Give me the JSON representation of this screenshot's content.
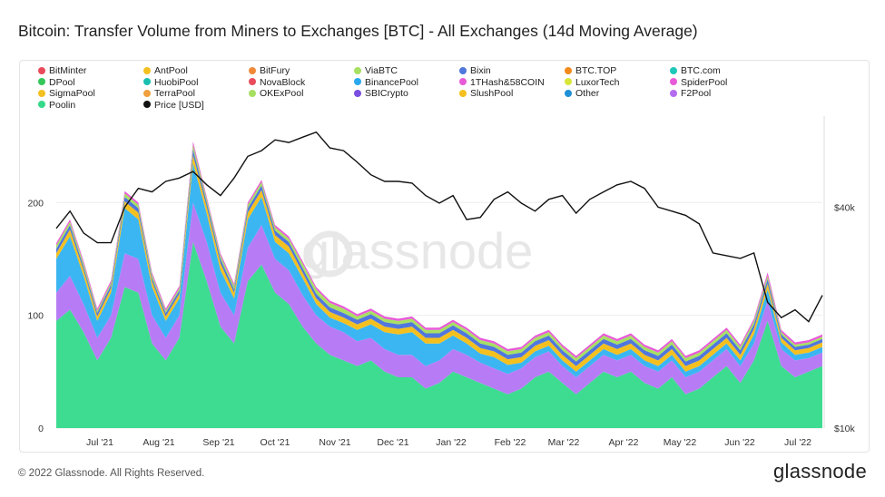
{
  "title": "Bitcoin: Transfer Volume from Miners to Exchanges [BTC] - All Exchanges (14d Moving Average)",
  "watermark": "glassnode",
  "footer": {
    "copyright": "© 2022 Glassnode. All Rights Reserved.",
    "brand": "glassnode"
  },
  "chart_data": {
    "type": "area",
    "stacked": true,
    "title": "Bitcoin: Transfer Volume from Miners to Exchanges [BTC] - All Exchanges (14d Moving Average)",
    "xlabel": "",
    "ylabel": "",
    "x_tick_labels": [
      "Jul '21",
      "Aug '21",
      "Sep '21",
      "Oct '21",
      "Nov '21",
      "Dec '21",
      "Jan '22",
      "Feb '22",
      "Mar '22",
      "Apr '22",
      "May '22",
      "Jun '22",
      "Jul '22"
    ],
    "y_left": {
      "ticks": [
        0,
        100,
        200
      ],
      "range": [
        0,
        275
      ]
    },
    "y_right": {
      "ticks": [
        "$10k",
        "$40k"
      ],
      "scale": "log",
      "range": [
        10000,
        70000
      ]
    },
    "legend_placement": "top",
    "legend": [
      {
        "name": "BitMinter",
        "color": "#ea4b5c"
      },
      {
        "name": "AntPool",
        "color": "#f4c020"
      },
      {
        "name": "BitFury",
        "color": "#f08a3a"
      },
      {
        "name": "ViaBTC",
        "color": "#a7e062"
      },
      {
        "name": "Bixin",
        "color": "#4f77dd"
      },
      {
        "name": "BTC.TOP",
        "color": "#f28a1c"
      },
      {
        "name": "BTC.com",
        "color": "#1fc7b8"
      },
      {
        "name": "DPool",
        "color": "#34c759"
      },
      {
        "name": "HuobiPool",
        "color": "#19bfae"
      },
      {
        "name": "NovaBlock",
        "color": "#ea4b5c"
      },
      {
        "name": "BinancePool",
        "color": "#2aa8f0"
      },
      {
        "name": "1THash&58COIN",
        "color": "#e85ad8"
      },
      {
        "name": "LuxorTech",
        "color": "#d8e63a"
      },
      {
        "name": "SpiderPool",
        "color": "#e85ad8"
      },
      {
        "name": "SigmaPool",
        "color": "#f4c020"
      },
      {
        "name": "TerraPool",
        "color": "#f0a03c"
      },
      {
        "name": "OKExPool",
        "color": "#a7e062"
      },
      {
        "name": "SBICrypto",
        "color": "#7a4fe0"
      },
      {
        "name": "SlushPool",
        "color": "#f4c020"
      },
      {
        "name": "Other",
        "color": "#1e90d8"
      },
      {
        "name": "F2Pool",
        "color": "#b36bf0"
      },
      {
        "name": "Poolin",
        "color": "#34d98a"
      },
      {
        "name": "Price [USD]",
        "color": "#111111"
      }
    ],
    "x_index_note": "x index 0 = mid-June 2021, step approx. 1 week, index 56 = late July 2022",
    "series": [
      {
        "name": "Poolin",
        "color": "#3ddc91",
        "values": [
          95,
          105,
          85,
          60,
          80,
          125,
          120,
          75,
          60,
          80,
          165,
          130,
          90,
          75,
          130,
          145,
          120,
          110,
          90,
          75,
          65,
          60,
          55,
          60,
          50,
          45,
          45,
          35,
          40,
          50,
          45,
          40,
          35,
          30,
          35,
          45,
          50,
          40,
          30,
          40,
          50,
          45,
          50,
          40,
          35,
          45,
          30,
          35,
          45,
          55,
          40,
          60,
          95,
          55,
          45,
          50,
          55
        ]
      },
      {
        "name": "F2Pool",
        "color": "#b77cf5",
        "values": [
          25,
          30,
          25,
          20,
          20,
          30,
          30,
          25,
          20,
          20,
          35,
          35,
          30,
          25,
          30,
          35,
          30,
          30,
          28,
          25,
          25,
          25,
          22,
          20,
          20,
          20,
          20,
          20,
          20,
          20,
          20,
          18,
          18,
          18,
          18,
          18,
          18,
          15,
          15,
          15,
          15,
          15,
          15,
          15,
          15,
          15,
          15,
          15,
          15,
          15,
          15,
          15,
          18,
          15,
          15,
          12,
          12
        ]
      },
      {
        "name": "Other",
        "color": "#3bb6f2",
        "values": [
          30,
          35,
          25,
          15,
          20,
          40,
          35,
          25,
          15,
          15,
          35,
          25,
          20,
          15,
          25,
          25,
          15,
          15,
          15,
          10,
          8,
          8,
          10,
          12,
          15,
          18,
          20,
          20,
          15,
          12,
          10,
          8,
          10,
          8,
          5,
          5,
          5,
          5,
          5,
          5,
          5,
          5,
          5,
          5,
          5,
          5,
          5,
          5,
          5,
          5,
          5,
          8,
          10,
          6,
          5,
          5,
          5
        ]
      },
      {
        "name": "AntPool",
        "color": "#f4c020",
        "values": [
          5,
          6,
          5,
          4,
          4,
          6,
          6,
          5,
          4,
          4,
          7,
          6,
          6,
          5,
          6,
          6,
          6,
          6,
          5,
          5,
          5,
          5,
          5,
          5,
          5,
          5,
          5,
          5,
          5,
          5,
          5,
          5,
          5,
          5,
          5,
          5,
          5,
          5,
          5,
          5,
          5,
          5,
          5,
          5,
          5,
          5,
          5,
          5,
          5,
          5,
          5,
          5,
          5,
          4,
          4,
          4,
          4
        ]
      },
      {
        "name": "BinancePool",
        "color": "#4f77dd",
        "values": [
          4,
          4,
          3,
          3,
          3,
          4,
          4,
          3,
          3,
          3,
          5,
          4,
          4,
          3,
          4,
          4,
          4,
          4,
          4,
          4,
          4,
          4,
          4,
          4,
          4,
          4,
          4,
          4,
          4,
          4,
          4,
          4,
          4,
          4,
          4,
          4,
          4,
          4,
          4,
          4,
          4,
          4,
          4,
          4,
          4,
          4,
          4,
          4,
          4,
          4,
          4,
          4,
          4,
          3,
          3,
          3,
          3
        ]
      },
      {
        "name": "ViaBTC",
        "color": "#a7e062",
        "values": [
          3,
          3,
          3,
          2,
          2,
          3,
          3,
          3,
          2,
          2,
          4,
          3,
          3,
          3,
          3,
          3,
          3,
          3,
          4,
          4,
          4,
          4,
          3,
          3,
          3,
          3,
          3,
          3,
          3,
          3,
          3,
          3,
          3,
          3,
          3,
          3,
          3,
          3,
          3,
          3,
          3,
          3,
          3,
          3,
          3,
          3,
          3,
          3,
          3,
          3,
          3,
          3,
          3,
          2,
          2,
          2,
          2
        ]
      },
      {
        "name": "SpiderPool",
        "color": "#e85ad8",
        "values": [
          2,
          2,
          2,
          2,
          2,
          2,
          2,
          2,
          2,
          2,
          3,
          2,
          2,
          2,
          2,
          2,
          2,
          2,
          2,
          2,
          2,
          2,
          2,
          2,
          2,
          2,
          2,
          2,
          2,
          2,
          2,
          2,
          2,
          2,
          2,
          2,
          2,
          2,
          2,
          2,
          2,
          2,
          2,
          2,
          2,
          2,
          2,
          2,
          2,
          2,
          2,
          2,
          3,
          2,
          2,
          2,
          2
        ]
      }
    ],
    "price_usd": [
      35000,
      39000,
      34000,
      32000,
      32000,
      40000,
      45000,
      44000,
      47000,
      48000,
      50000,
      46000,
      43000,
      48000,
      55000,
      57000,
      61000,
      60000,
      62000,
      64000,
      58000,
      57000,
      53000,
      49000,
      47000,
      47000,
      46500,
      43000,
      41000,
      43000,
      37000,
      37500,
      42000,
      44000,
      41000,
      39000,
      42000,
      43000,
      38500,
      42000,
      44000,
      46000,
      47000,
      45000,
      40000,
      39000,
      38000,
      36000,
      30000,
      29500,
      29000,
      30000,
      22000,
      20000,
      21000,
      19500,
      23000
    ]
  }
}
